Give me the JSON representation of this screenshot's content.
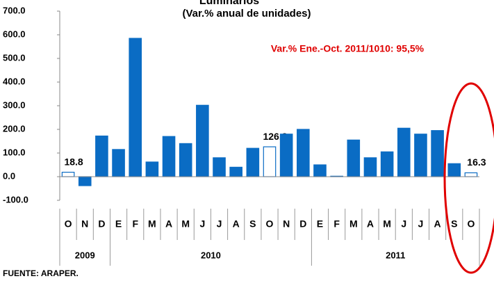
{
  "chart_data": {
    "type": "bar",
    "title": "Luminarios",
    "subtitle": "(Var.% anual de unidades)",
    "annotation": "Var.% Ene.-Oct. 2011/1010: 95,5%",
    "source": "FUENTE: ARAPER.",
    "categories": [
      "O",
      "N",
      "D",
      "E",
      "F",
      "M",
      "A",
      "M",
      "J",
      "J",
      "A",
      "S",
      "O",
      "N",
      "D",
      "E",
      "F",
      "M",
      "A",
      "M",
      "J",
      "J",
      "A",
      "S",
      "O"
    ],
    "values": [
      18.8,
      -38,
      172,
      115,
      585,
      62,
      170,
      140,
      302,
      80,
      40,
      120,
      126.3,
      180,
      200,
      50,
      2,
      155,
      80,
      105,
      205,
      180,
      195,
      55,
      16.3
    ],
    "value_labels": [
      "18.8",
      null,
      null,
      null,
      null,
      null,
      null,
      null,
      null,
      null,
      null,
      null,
      "126.3",
      null,
      null,
      null,
      null,
      null,
      null,
      null,
      null,
      null,
      null,
      null,
      "16.3"
    ],
    "color": "#0a6cc4",
    "colors": [
      "#ffffff",
      "#0a6cc4",
      "#0a6cc4",
      "#0a6cc4",
      "#0a6cc4",
      "#0a6cc4",
      "#0a6cc4",
      "#0a6cc4",
      "#0a6cc4",
      "#0a6cc4",
      "#0a6cc4",
      "#0a6cc4",
      "#ffffff",
      "#0a6cc4",
      "#0a6cc4",
      "#0a6cc4",
      "#0a6cc4",
      "#0a6cc4",
      "#0a6cc4",
      "#0a6cc4",
      "#0a6cc4",
      "#0a6cc4",
      "#0a6cc4",
      "#0a6cc4",
      "#ffffff"
    ],
    "year_groups": [
      {
        "label": "2009",
        "start": 0,
        "end": 2
      },
      {
        "label": "2010",
        "start": 3,
        "end": 14
      },
      {
        "label": "2011",
        "start": 15,
        "end": 24
      }
    ],
    "ylim": [
      -100,
      700
    ],
    "yticks": [
      {
        "value": -100,
        "label": "-100.0"
      },
      {
        "value": 0,
        "label": "0.0"
      },
      {
        "value": 100,
        "label": "100.0"
      },
      {
        "value": 200,
        "label": "200.0"
      },
      {
        "value": 300,
        "label": "300.0"
      },
      {
        "value": 400,
        "label": "400.0"
      },
      {
        "value": 500,
        "label": "500.0"
      },
      {
        "value": 600,
        "label": "600.0"
      },
      {
        "value": 700,
        "label": "700.0"
      }
    ],
    "grid": false
  }
}
